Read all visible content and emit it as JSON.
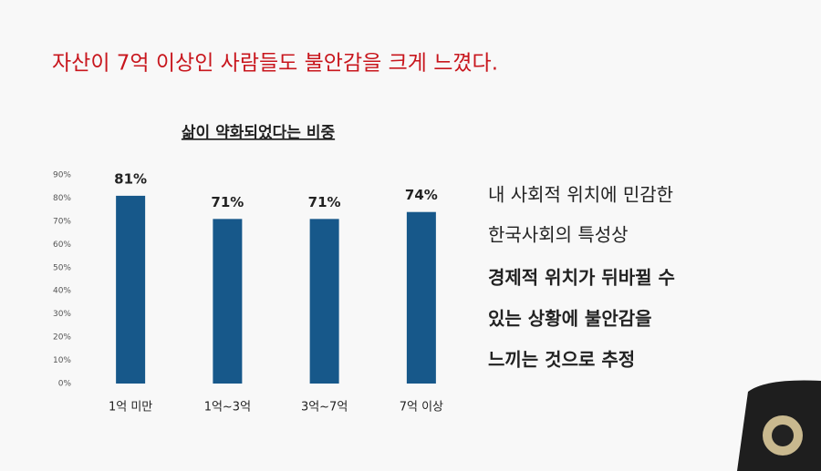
{
  "headline": "자산이 7억 이상인 사람들도 불안감을 크게 느꼈다.",
  "note": [
    "내 사회적 위치에 민감한",
    "한국사회의 특성상",
    "경제적 위치가 뒤바뀔 수",
    "있는 상황에 불안감을",
    "느끼는 것으로 추정"
  ],
  "chart_data": {
    "type": "bar",
    "title": "삶이 약화되었다는 비중",
    "categories": [
      "1억 미만",
      "1억~3억",
      "3억~7억",
      "7억 이상"
    ],
    "values": [
      81,
      71,
      71,
      74
    ],
    "value_labels": [
      "81%",
      "71%",
      "71%",
      "74%"
    ],
    "color": "#17588a",
    "ylim": [
      0,
      90
    ],
    "yticks": [
      {
        "value": 0,
        "label": "0%"
      },
      {
        "value": 10,
        "label": "10%"
      },
      {
        "value": 20,
        "label": "20%"
      },
      {
        "value": 30,
        "label": "30%"
      },
      {
        "value": 40,
        "label": "40%"
      },
      {
        "value": 50,
        "label": "50%"
      },
      {
        "value": 60,
        "label": "60%"
      },
      {
        "value": 70,
        "label": "70%"
      },
      {
        "value": 80,
        "label": "80%"
      },
      {
        "value": 90,
        "label": "90%"
      }
    ],
    "grid": false
  }
}
